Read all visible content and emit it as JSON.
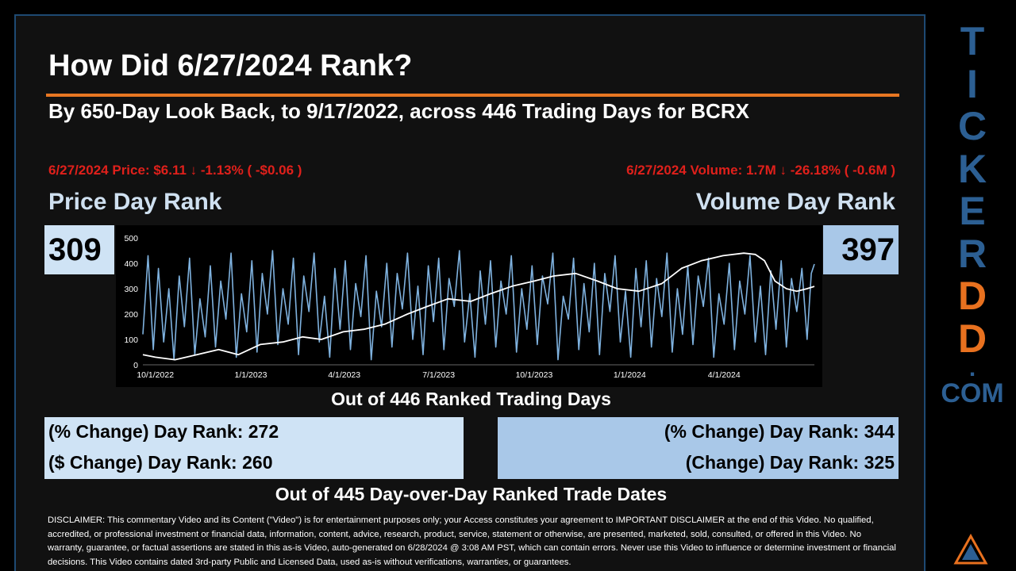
{
  "header": {
    "title": "How Did 6/27/2024 Rank?",
    "subtitle": "By 650-Day Look Back, to 9/17/2022, across 446 Trading Days for BCRX"
  },
  "price": {
    "stat": "6/27/2024 Price: $6.11 ↓ -1.13% ( -$0.06 )",
    "label": "Price Day Rank",
    "rank": "309"
  },
  "volume": {
    "stat": "6/27/2024 Volume: 1.7M ↓ -26.18% ( -0.6M )",
    "label": "Volume Day Rank",
    "rank": "397"
  },
  "out_of_days": "Out of 446 Ranked Trading Days",
  "change_ranks": {
    "left": [
      "(% Change) Day Rank: 272",
      "($ Change) Day Rank: 260"
    ],
    "right": [
      "(% Change) Day Rank: 344",
      "(Change) Day Rank: 325"
    ]
  },
  "out_of_dates": "Out of 445 Day-over-Day Ranked Trade Dates",
  "disclaimer": "DISCLAIMER: This commentary Video and its Content (\"Video\") is for entertainment purposes only; your Access constitutes your agreement to IMPORTANT DISCLAIMER at the end of this Video. No qualified, accredited, or professional investment or financial data, information, content, advice, research, product, service, statement or otherwise, are presented, marketed, sold, consulted, or offered in this Video. No warranty, guarantee, or factual assertions are stated in this as-is Video, auto-generated on 6/28/2024 @ 3:08 AM PST, which can contain errors. Never use this Video to influence or determine investment or financial decisions. This Video contains dated 3rd-party Public and Licensed Data, used as-is without verifications, warranties, or guarantees.",
  "brand": {
    "letters": [
      "T",
      "I",
      "C",
      "K",
      "E",
      "R",
      "D",
      "D"
    ],
    "dot": ".",
    "com": "COM",
    "colors": {
      "blue": "#2c5f93",
      "orange": "#e8711f"
    },
    "logo_icon": "warning-triangle-icon"
  },
  "colors": {
    "accent_rule": "#e87722",
    "stat_red": "#e0201b",
    "label_blue": "#cfe0f0",
    "box_light": "#cfe3f5",
    "box_mid": "#a9c8e8",
    "volume_series": "#7fb2df",
    "price_series": "#ffffff"
  },
  "chart_data": {
    "type": "line",
    "ylim": [
      0,
      500
    ],
    "yticks": [
      0,
      100,
      200,
      300,
      400,
      500
    ],
    "xlim": [
      "2022-09-19",
      "2024-06-27"
    ],
    "xticks": [
      {
        "date": "2022-10-01",
        "label": "10/1/2022"
      },
      {
        "date": "2023-01-01",
        "label": "1/1/2023"
      },
      {
        "date": "2023-04-01",
        "label": "4/1/2023"
      },
      {
        "date": "2023-07-01",
        "label": "7/1/2023"
      },
      {
        "date": "2023-10-01",
        "label": "10/1/2023"
      },
      {
        "date": "2024-01-01",
        "label": "1/1/2024"
      },
      {
        "date": "2024-04-01",
        "label": "4/1/2024"
      }
    ],
    "series": [
      {
        "color": "#7fb2df",
        "points": [
          [
            "2022-09-19",
            120
          ],
          [
            "2022-09-24",
            430
          ],
          [
            "2022-09-29",
            60
          ],
          [
            "2022-10-04",
            380
          ],
          [
            "2022-10-09",
            90
          ],
          [
            "2022-10-14",
            300
          ],
          [
            "2022-10-19",
            20
          ],
          [
            "2022-10-24",
            350
          ],
          [
            "2022-10-29",
            150
          ],
          [
            "2022-11-03",
            420
          ],
          [
            "2022-11-08",
            40
          ],
          [
            "2022-11-13",
            260
          ],
          [
            "2022-11-18",
            110
          ],
          [
            "2022-11-23",
            390
          ],
          [
            "2022-11-28",
            70
          ],
          [
            "2022-12-03",
            330
          ],
          [
            "2022-12-08",
            180
          ],
          [
            "2022-12-13",
            440
          ],
          [
            "2022-12-18",
            30
          ],
          [
            "2022-12-23",
            280
          ],
          [
            "2022-12-28",
            130
          ],
          [
            "2023-01-02",
            410
          ],
          [
            "2023-01-07",
            50
          ],
          [
            "2023-01-12",
            360
          ],
          [
            "2023-01-17",
            200
          ],
          [
            "2023-01-22",
            450
          ],
          [
            "2023-01-27",
            80
          ],
          [
            "2023-02-01",
            300
          ],
          [
            "2023-02-06",
            160
          ],
          [
            "2023-02-11",
            420
          ],
          [
            "2023-02-16",
            40
          ],
          [
            "2023-02-21",
            350
          ],
          [
            "2023-02-26",
            210
          ],
          [
            "2023-03-03",
            440
          ],
          [
            "2023-03-08",
            90
          ],
          [
            "2023-03-13",
            270
          ],
          [
            "2023-03-18",
            30
          ],
          [
            "2023-03-23",
            380
          ],
          [
            "2023-03-28",
            140
          ],
          [
            "2023-04-02",
            410
          ],
          [
            "2023-04-07",
            60
          ],
          [
            "2023-04-12",
            320
          ],
          [
            "2023-04-17",
            190
          ],
          [
            "2023-04-22",
            430
          ],
          [
            "2023-04-27",
            20
          ],
          [
            "2023-05-02",
            290
          ],
          [
            "2023-05-07",
            150
          ],
          [
            "2023-05-12",
            400
          ],
          [
            "2023-05-17",
            70
          ],
          [
            "2023-05-22",
            360
          ],
          [
            "2023-05-27",
            220
          ],
          [
            "2023-06-01",
            440
          ],
          [
            "2023-06-06",
            100
          ],
          [
            "2023-06-11",
            310
          ],
          [
            "2023-06-16",
            40
          ],
          [
            "2023-06-21",
            390
          ],
          [
            "2023-06-26",
            170
          ],
          [
            "2023-07-01",
            420
          ],
          [
            "2023-07-06",
            60
          ],
          [
            "2023-07-11",
            340
          ],
          [
            "2023-07-16",
            230
          ],
          [
            "2023-07-21",
            450
          ],
          [
            "2023-07-26",
            90
          ],
          [
            "2023-07-31",
            280
          ],
          [
            "2023-08-05",
            30
          ],
          [
            "2023-08-10",
            370
          ],
          [
            "2023-08-15",
            160
          ],
          [
            "2023-08-20",
            410
          ],
          [
            "2023-08-25",
            70
          ],
          [
            "2023-08-30",
            330
          ],
          [
            "2023-09-04",
            200
          ],
          [
            "2023-09-09",
            430
          ],
          [
            "2023-09-14",
            50
          ],
          [
            "2023-09-19",
            300
          ],
          [
            "2023-09-24",
            140
          ],
          [
            "2023-09-29",
            390
          ],
          [
            "2023-10-04",
            80
          ],
          [
            "2023-10-09",
            350
          ],
          [
            "2023-10-14",
            240
          ],
          [
            "2023-10-19",
            440
          ],
          [
            "2023-10-24",
            20
          ],
          [
            "2023-10-29",
            270
          ],
          [
            "2023-11-03",
            180
          ],
          [
            "2023-11-08",
            420
          ],
          [
            "2023-11-13",
            60
          ],
          [
            "2023-11-18",
            320
          ],
          [
            "2023-11-23",
            130
          ],
          [
            "2023-11-28",
            400
          ],
          [
            "2023-12-03",
            40
          ],
          [
            "2023-12-08",
            360
          ],
          [
            "2023-12-13",
            210
          ],
          [
            "2023-12-18",
            430
          ],
          [
            "2023-12-23",
            90
          ],
          [
            "2023-12-28",
            290
          ],
          [
            "2024-01-02",
            30
          ],
          [
            "2024-01-07",
            380
          ],
          [
            "2024-01-12",
            150
          ],
          [
            "2024-01-17",
            410
          ],
          [
            "2024-01-22",
            70
          ],
          [
            "2024-01-27",
            340
          ],
          [
            "2024-02-01",
            190
          ],
          [
            "2024-02-06",
            440
          ],
          [
            "2024-02-11",
            50
          ],
          [
            "2024-02-16",
            300
          ],
          [
            "2024-02-21",
            120
          ],
          [
            "2024-02-26",
            390
          ],
          [
            "2024-03-02",
            80
          ],
          [
            "2024-03-07",
            350
          ],
          [
            "2024-03-12",
            230
          ],
          [
            "2024-03-17",
            420
          ],
          [
            "2024-03-22",
            30
          ],
          [
            "2024-03-27",
            280
          ],
          [
            "2024-04-01",
            160
          ],
          [
            "2024-04-06",
            400
          ],
          [
            "2024-04-11",
            60
          ],
          [
            "2024-04-16",
            330
          ],
          [
            "2024-04-21",
            200
          ],
          [
            "2024-04-26",
            430
          ],
          [
            "2024-05-01",
            90
          ],
          [
            "2024-05-06",
            310
          ],
          [
            "2024-05-11",
            40
          ],
          [
            "2024-05-16",
            370
          ],
          [
            "2024-05-21",
            140
          ],
          [
            "2024-05-26",
            410
          ],
          [
            "2024-05-31",
            70
          ],
          [
            "2024-06-05",
            340
          ],
          [
            "2024-06-10",
            210
          ],
          [
            "2024-06-15",
            380
          ],
          [
            "2024-06-20",
            100
          ],
          [
            "2024-06-24",
            360
          ],
          [
            "2024-06-27",
            397
          ]
        ]
      },
      {
        "color": "#ffffff",
        "points": [
          [
            "2022-09-19",
            40
          ],
          [
            "2022-10-01",
            30
          ],
          [
            "2022-10-20",
            20
          ],
          [
            "2022-11-10",
            40
          ],
          [
            "2022-12-01",
            60
          ],
          [
            "2022-12-20",
            40
          ],
          [
            "2023-01-10",
            80
          ],
          [
            "2023-02-01",
            90
          ],
          [
            "2023-02-20",
            110
          ],
          [
            "2023-03-10",
            100
          ],
          [
            "2023-03-31",
            130
          ],
          [
            "2023-04-20",
            140
          ],
          [
            "2023-05-10",
            160
          ],
          [
            "2023-06-01",
            200
          ],
          [
            "2023-06-20",
            230
          ],
          [
            "2023-07-10",
            260
          ],
          [
            "2023-08-01",
            250
          ],
          [
            "2023-08-20",
            280
          ],
          [
            "2023-09-10",
            310
          ],
          [
            "2023-10-01",
            330
          ],
          [
            "2023-10-20",
            350
          ],
          [
            "2023-11-10",
            360
          ],
          [
            "2023-12-01",
            330
          ],
          [
            "2023-12-20",
            300
          ],
          [
            "2024-01-10",
            290
          ],
          [
            "2024-02-01",
            320
          ],
          [
            "2024-02-20",
            380
          ],
          [
            "2024-03-10",
            410
          ],
          [
            "2024-03-31",
            430
          ],
          [
            "2024-04-20",
            440
          ],
          [
            "2024-05-01",
            435
          ],
          [
            "2024-05-10",
            410
          ],
          [
            "2024-05-20",
            330
          ],
          [
            "2024-05-31",
            300
          ],
          [
            "2024-06-10",
            290
          ],
          [
            "2024-06-20",
            300
          ],
          [
            "2024-06-27",
            309
          ]
        ]
      }
    ]
  }
}
